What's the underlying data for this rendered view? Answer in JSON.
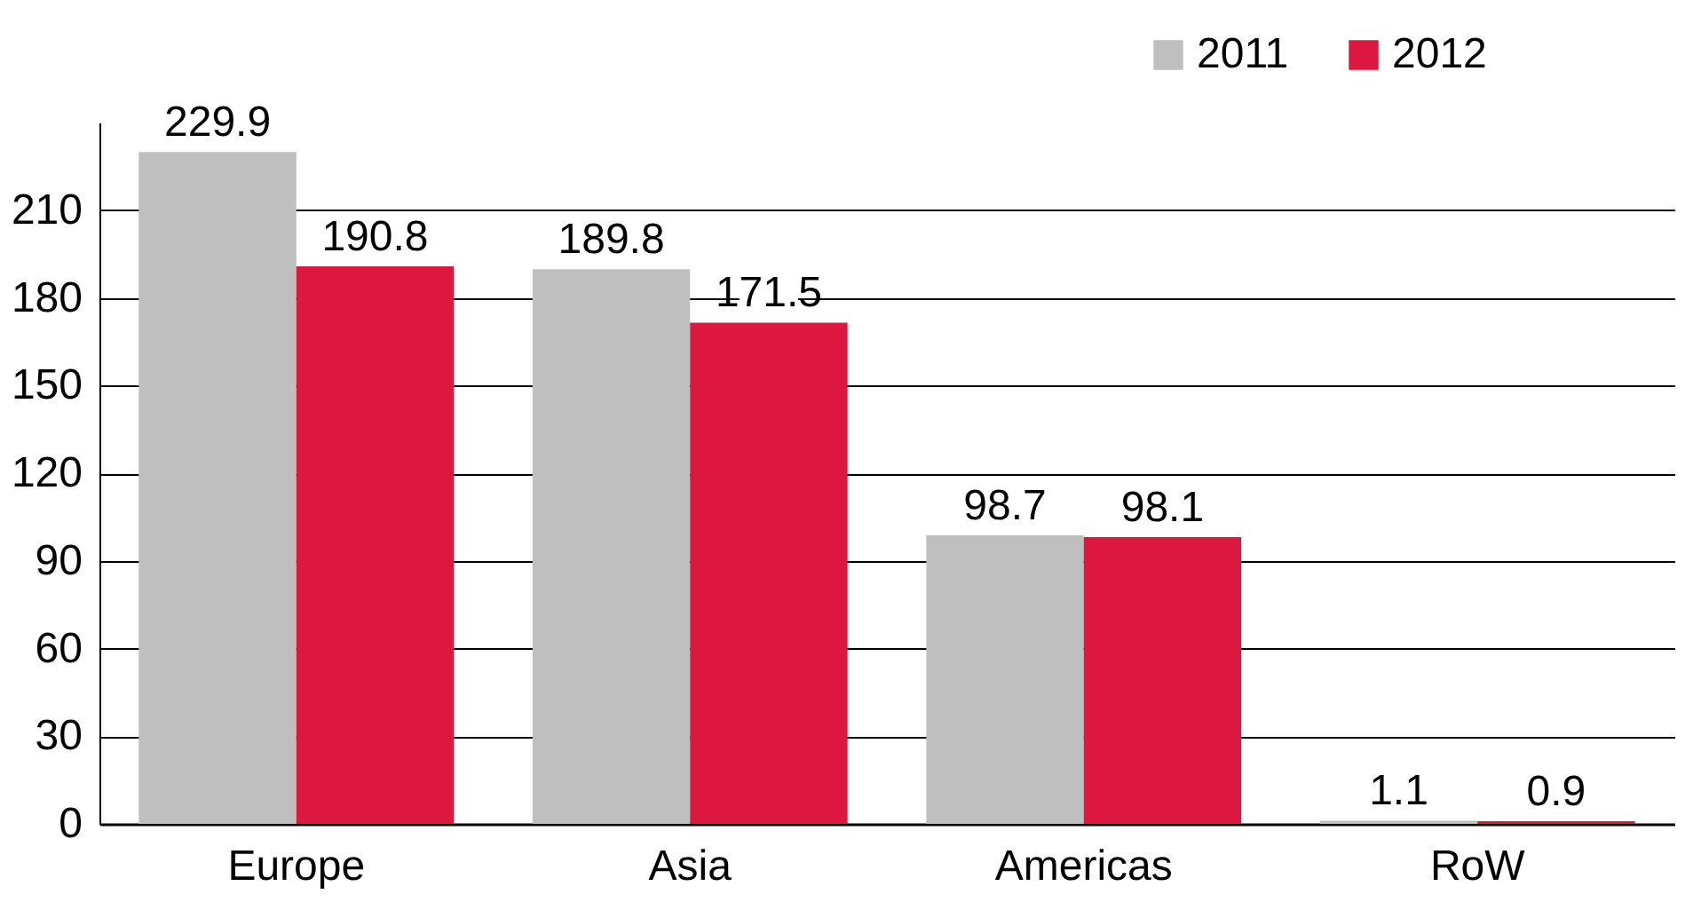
{
  "chart_data": {
    "type": "bar",
    "categories": [
      "Europe",
      "Asia",
      "Americas",
      "RoW"
    ],
    "series": [
      {
        "name": "2011",
        "color": "#bfbfbf",
        "values": [
          229.9,
          189.8,
          98.7,
          1.1
        ]
      },
      {
        "name": "2012",
        "color": "#dc1840",
        "values": [
          190.8,
          171.5,
          98.1,
          0.9
        ]
      }
    ],
    "ylim": [
      0,
      240
    ],
    "yticks": [
      0,
      30,
      60,
      90,
      120,
      150,
      180,
      210
    ],
    "grid": "y",
    "legend": "top right",
    "data_labels": true
  }
}
